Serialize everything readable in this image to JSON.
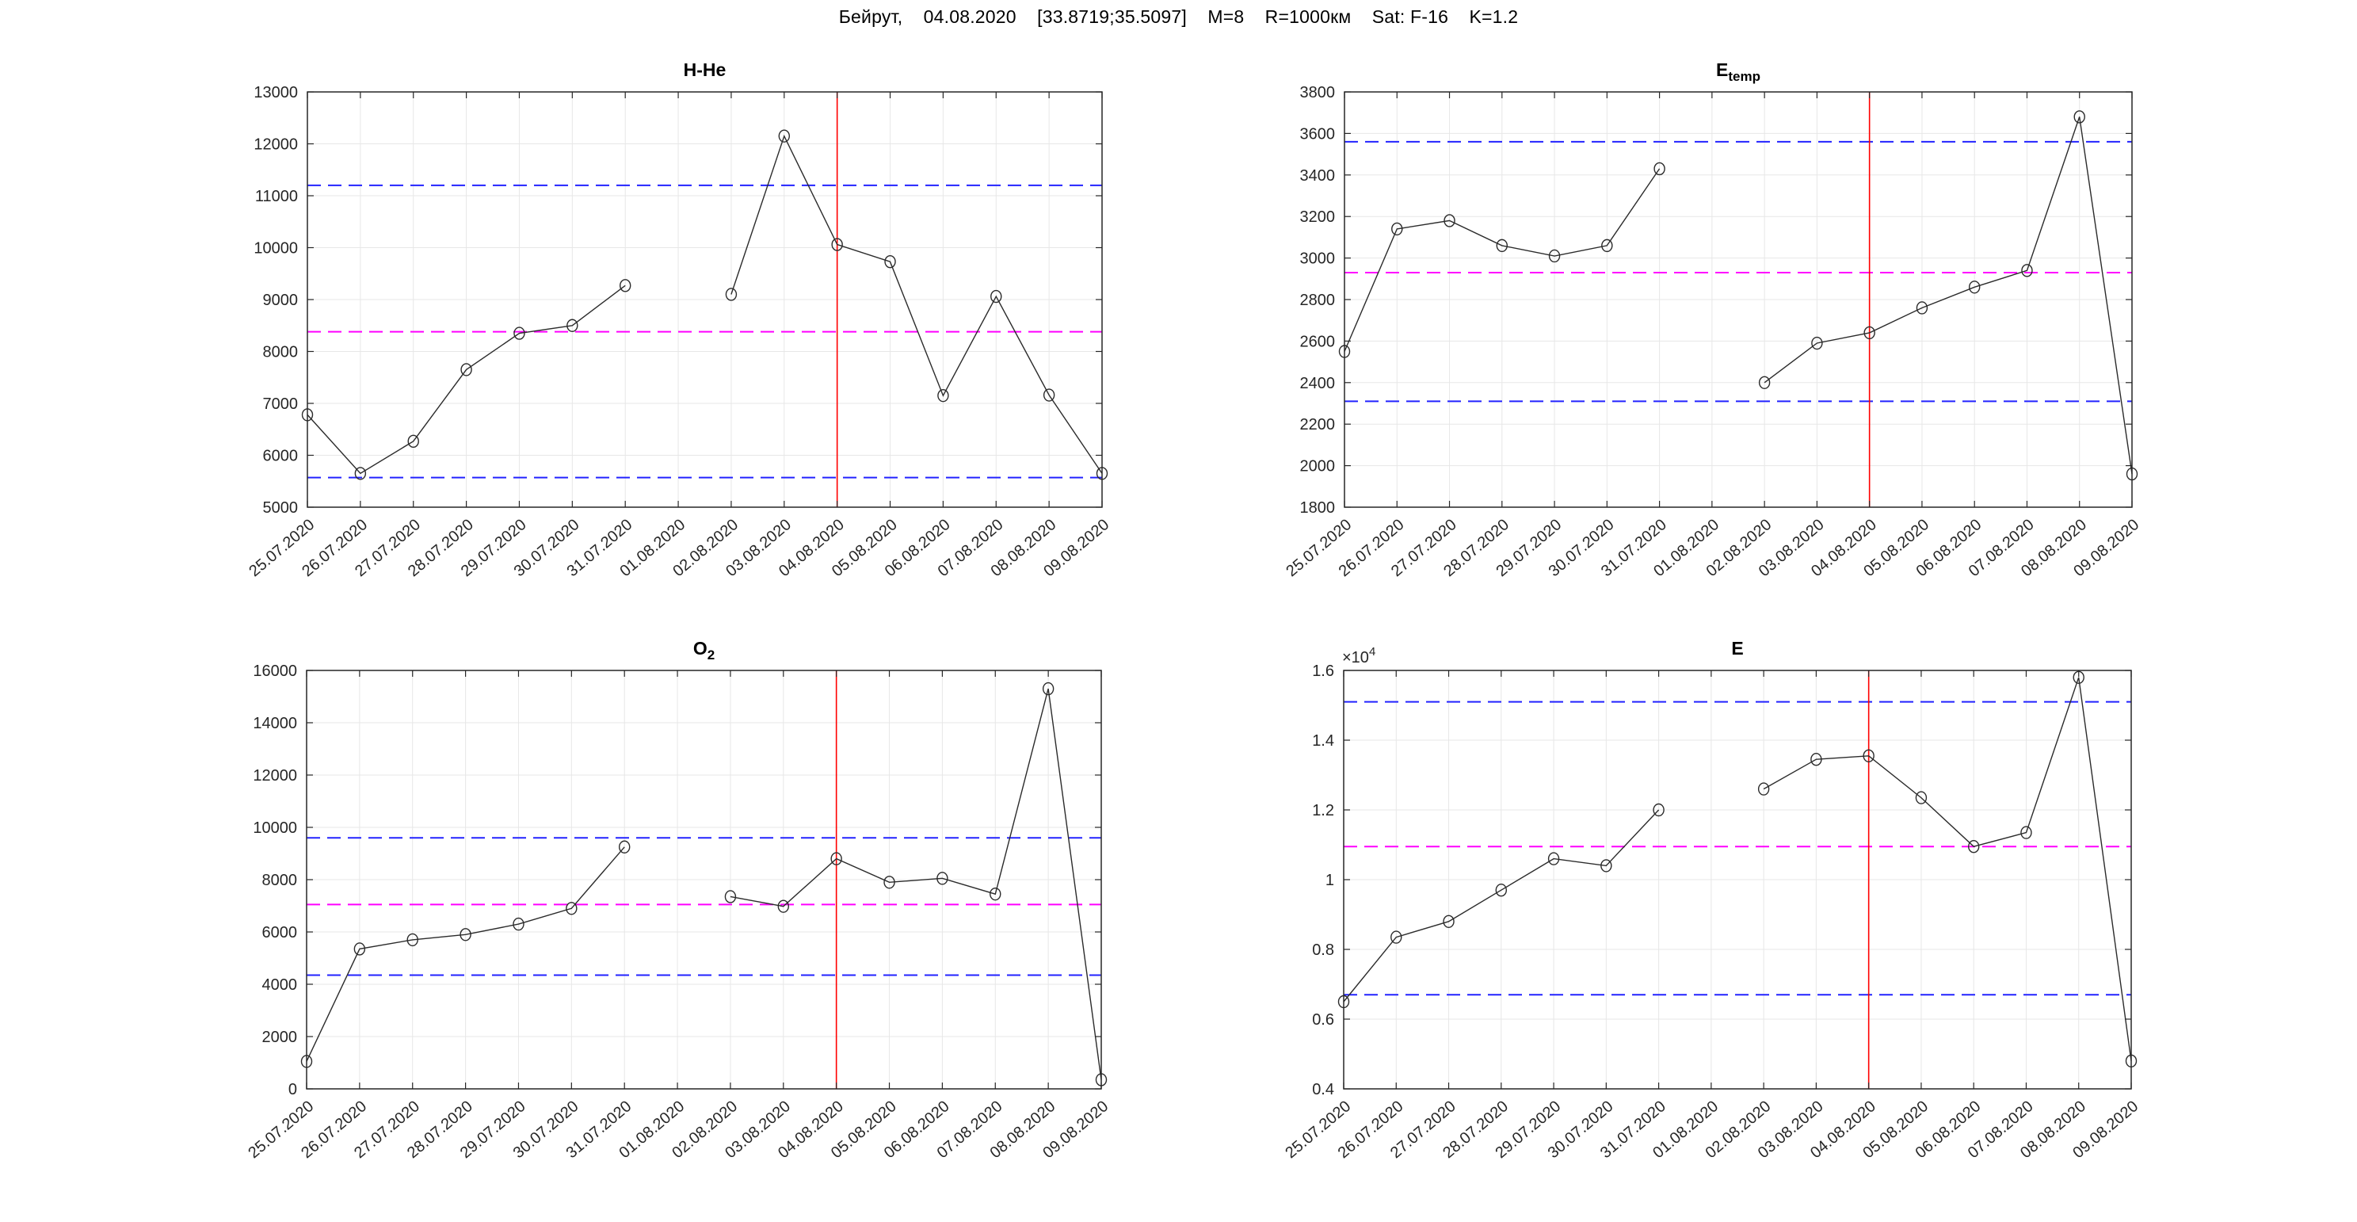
{
  "header": {
    "title": "Бейрут,    04.08.2020    [33.8719;35.5097]    M=8    R=1000км    Sat: F-16    K=1.2"
  },
  "colors": {
    "series": "#2b2b2b",
    "marker": "#2b2b2b",
    "bounds_dashed": "#2323ff",
    "mean_dashed": "#ff00ff",
    "event_line": "#ff0000",
    "grid": "#e7e7e7",
    "axis": "#262626",
    "tick_label": "#262626",
    "background": "#ffffff"
  },
  "chart_data": [
    {
      "type": "line",
      "title": {
        "main": "H-He",
        "sub": ""
      },
      "xlabel": "",
      "ylabel": "",
      "legend_position": "none",
      "grid": true,
      "categories": [
        "25.07.2020",
        "26.07.2020",
        "27.07.2020",
        "28.07.2020",
        "29.07.2020",
        "30.07.2020",
        "31.07.2020",
        "01.08.2020",
        "02.08.2020",
        "03.08.2020",
        "04.08.2020",
        "05.08.2020",
        "06.08.2020",
        "07.08.2020",
        "08.08.2020",
        "09.08.2020"
      ],
      "values": [
        6780,
        5650,
        6270,
        7650,
        8350,
        8500,
        9270,
        null,
        9100,
        12150,
        10060,
        9730,
        7150,
        9060,
        7160,
        5650
      ],
      "ylim": [
        5000,
        13000
      ],
      "ytick_step": 1000,
      "y_scale": 1,
      "exp_base": "",
      "exp_power": "",
      "bounds": {
        "upper": 11200,
        "mean": 8380,
        "lower": 5570
      },
      "event_date": "04.08.2020"
    },
    {
      "type": "line",
      "title": {
        "main": "E",
        "sub": "temp"
      },
      "xlabel": "",
      "ylabel": "",
      "legend_position": "none",
      "grid": true,
      "categories": [
        "25.07.2020",
        "26.07.2020",
        "27.07.2020",
        "28.07.2020",
        "29.07.2020",
        "30.07.2020",
        "31.07.2020",
        "01.08.2020",
        "02.08.2020",
        "03.08.2020",
        "04.08.2020",
        "05.08.2020",
        "06.08.2020",
        "07.08.2020",
        "08.08.2020",
        "09.08.2020"
      ],
      "values": [
        2550,
        3140,
        3180,
        3060,
        3010,
        3060,
        3430,
        null,
        2400,
        2590,
        2640,
        2760,
        2860,
        2940,
        3680,
        1960
      ],
      "ylim": [
        1800,
        3800
      ],
      "ytick_step": 200,
      "y_scale": 1,
      "exp_base": "",
      "exp_power": "",
      "bounds": {
        "upper": 3560,
        "mean": 2930,
        "lower": 2310
      },
      "event_date": "04.08.2020"
    },
    {
      "type": "line",
      "title": {
        "main": "O",
        "sub": "2"
      },
      "xlabel": "",
      "ylabel": "",
      "legend_position": "none",
      "grid": true,
      "categories": [
        "25.07.2020",
        "26.07.2020",
        "27.07.2020",
        "28.07.2020",
        "29.07.2020",
        "30.07.2020",
        "31.07.2020",
        "01.08.2020",
        "02.08.2020",
        "03.08.2020",
        "04.08.2020",
        "05.08.2020",
        "06.08.2020",
        "07.08.2020",
        "08.08.2020",
        "09.08.2020"
      ],
      "values": [
        1050,
        5350,
        5700,
        5900,
        6300,
        6900,
        9250,
        null,
        7350,
        6980,
        8800,
        7900,
        8050,
        7450,
        15300,
        350
      ],
      "ylim": [
        0,
        16000
      ],
      "ytick_step": 2000,
      "y_scale": 1,
      "exp_base": "",
      "exp_power": "",
      "bounds": {
        "upper": 9600,
        "mean": 7050,
        "lower": 4350
      },
      "event_date": "04.08.2020"
    },
    {
      "type": "line",
      "title": {
        "main": "E",
        "sub": ""
      },
      "xlabel": "",
      "ylabel": "",
      "legend_position": "none",
      "grid": true,
      "categories": [
        "25.07.2020",
        "26.07.2020",
        "27.07.2020",
        "28.07.2020",
        "29.07.2020",
        "30.07.2020",
        "31.07.2020",
        "01.08.2020",
        "02.08.2020",
        "03.08.2020",
        "04.08.2020",
        "05.08.2020",
        "06.08.2020",
        "07.08.2020",
        "08.08.2020",
        "09.08.2020"
      ],
      "values": [
        6500,
        8350,
        8800,
        9700,
        10600,
        10400,
        12000,
        null,
        12600,
        13450,
        13550,
        12350,
        10950,
        11350,
        15800,
        4800
      ],
      "ylim": [
        4000,
        16000
      ],
      "ytick_step": 2000,
      "y_scale": 10000,
      "exp_base": "×10",
      "exp_power": "4",
      "bounds": {
        "upper": 15100,
        "mean": 10950,
        "lower": 6700
      },
      "event_date": "04.08.2020"
    }
  ]
}
